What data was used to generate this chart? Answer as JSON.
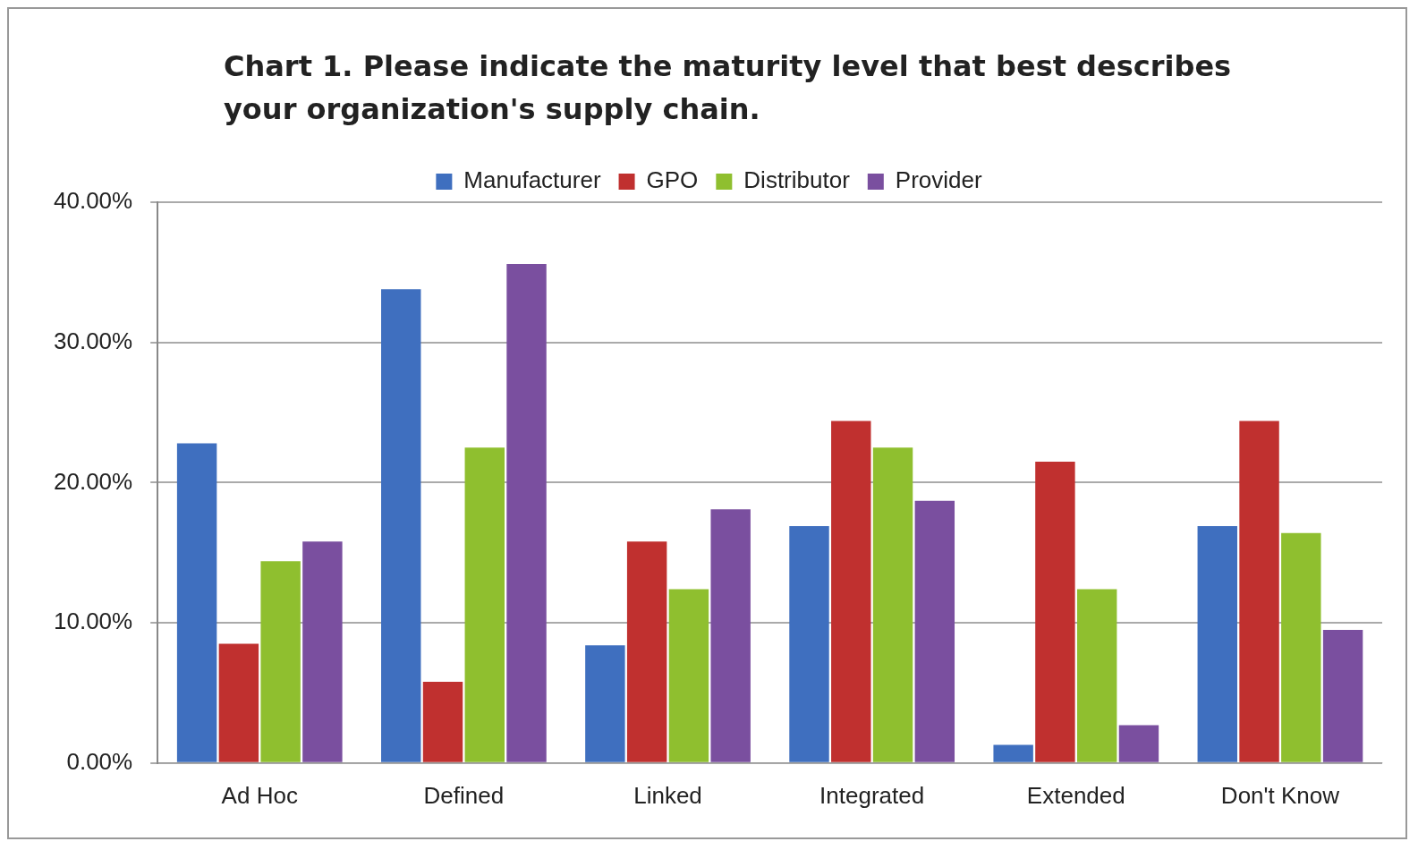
{
  "chart_data": {
    "type": "bar",
    "title": "Chart 1. Please indicate the maturity level that best describes your organization's supply chain.",
    "categories": [
      "Ad Hoc",
      "Defined",
      "Linked",
      "Integrated",
      "Extended",
      "Don't Know"
    ],
    "series": [
      {
        "name": "Manufacturer",
        "color": "#3f6fbf",
        "values": [
          22.8,
          33.8,
          8.4,
          16.9,
          1.3,
          16.9
        ]
      },
      {
        "name": "GPO",
        "color": "#c0302f",
        "values": [
          8.5,
          5.8,
          15.8,
          24.4,
          21.5,
          24.4
        ]
      },
      {
        "name": "Distributor",
        "color": "#8fbf2f",
        "values": [
          14.4,
          22.5,
          12.4,
          22.5,
          12.4,
          16.4
        ]
      },
      {
        "name": "Provider",
        "color": "#7a4f9f",
        "values": [
          15.8,
          35.6,
          18.1,
          18.7,
          2.7,
          9.5
        ]
      }
    ],
    "ylim": [
      0,
      40
    ],
    "yticks": [
      {
        "value": 0,
        "label": "0.00%"
      },
      {
        "value": 10,
        "label": "10.00%"
      },
      {
        "value": 20,
        "label": "20.00%"
      },
      {
        "value": 30,
        "label": "30.00%"
      },
      {
        "value": 40,
        "label": "40.00%"
      }
    ],
    "grid": "y",
    "legend": "top"
  }
}
